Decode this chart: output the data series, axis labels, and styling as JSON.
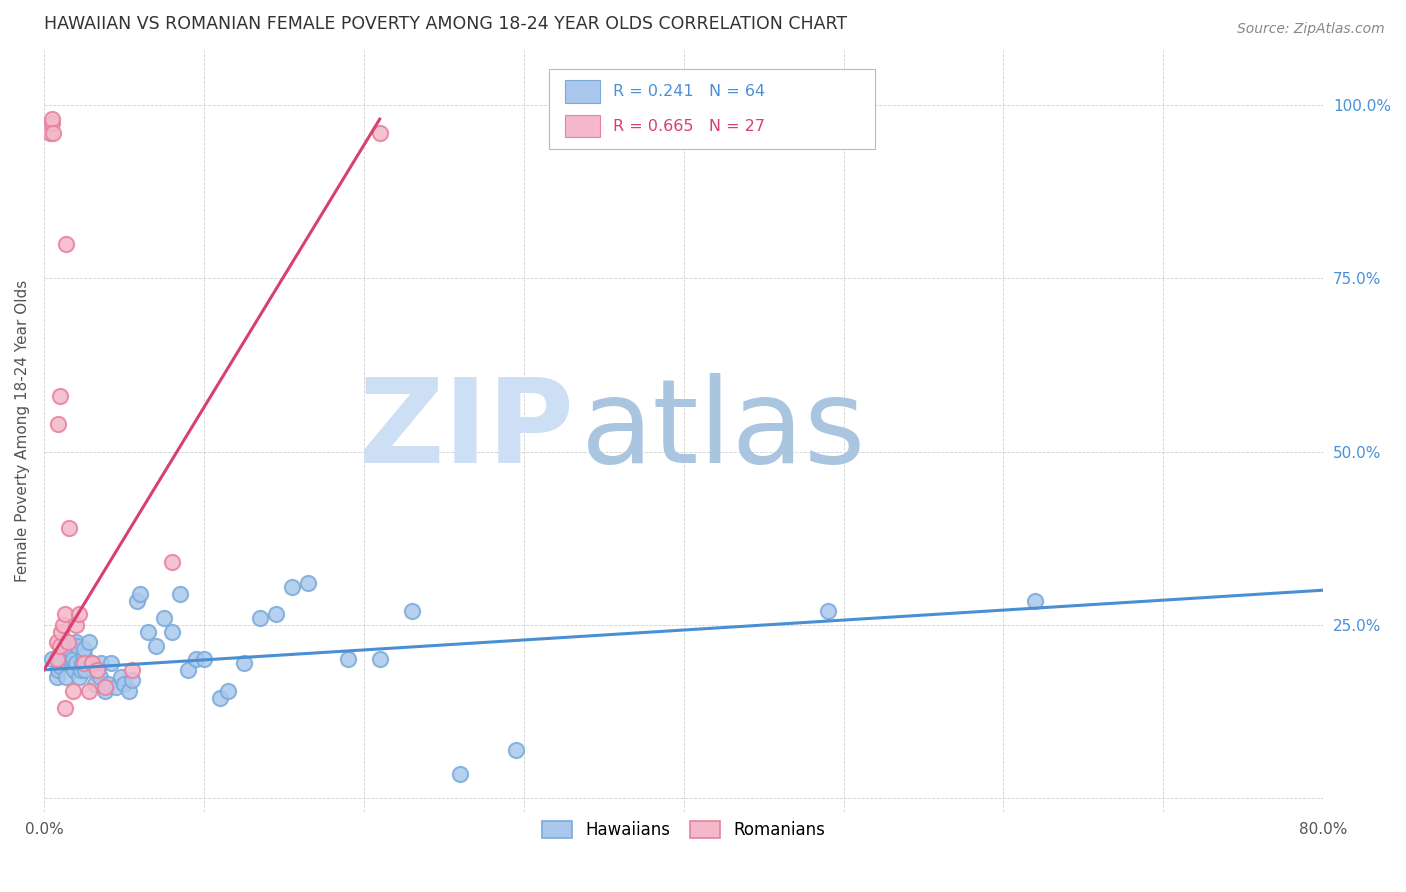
{
  "title": "HAWAIIAN VS ROMANIAN FEMALE POVERTY AMONG 18-24 YEAR OLDS CORRELATION CHART",
  "source": "Source: ZipAtlas.com",
  "ylabel": "Female Poverty Among 18-24 Year Olds",
  "xlim": [
    0.0,
    0.8
  ],
  "ylim": [
    -0.02,
    1.08
  ],
  "hawaiian_color": "#aac8ee",
  "romanian_color": "#f4b8ca",
  "hawaiian_edge": "#7aaad8",
  "romanian_edge": "#e8809e",
  "trendline_hawaiian_color": "#4a8fd4",
  "trendline_romanian_color": "#d84070",
  "watermark_zi_color": "#ccddf0",
  "watermark_atlas_color": "#aac5e8",
  "watermark_text_zi": "ZIP",
  "watermark_text_atlas": "atlas",
  "legend_r_hawaiian": "R = 0.241",
  "legend_n_hawaiian": "N = 64",
  "legend_r_romanian": "R = 0.665",
  "legend_n_romanian": "N = 27",
  "hawaiian_x": [
    0.005,
    0.008,
    0.009,
    0.01,
    0.01,
    0.011,
    0.012,
    0.013,
    0.014,
    0.015,
    0.015,
    0.016,
    0.016,
    0.017,
    0.018,
    0.018,
    0.019,
    0.02,
    0.02,
    0.021,
    0.022,
    0.023,
    0.024,
    0.025,
    0.025,
    0.026,
    0.028,
    0.03,
    0.032,
    0.033,
    0.035,
    0.036,
    0.038,
    0.04,
    0.042,
    0.045,
    0.048,
    0.05,
    0.053,
    0.055,
    0.058,
    0.06,
    0.065,
    0.07,
    0.075,
    0.08,
    0.085,
    0.09,
    0.095,
    0.1,
    0.11,
    0.115,
    0.125,
    0.135,
    0.145,
    0.155,
    0.165,
    0.19,
    0.21,
    0.23,
    0.26,
    0.295,
    0.49,
    0.62
  ],
  "hawaiian_y": [
    0.2,
    0.175,
    0.185,
    0.195,
    0.19,
    0.2,
    0.21,
    0.22,
    0.175,
    0.195,
    0.21,
    0.2,
    0.215,
    0.195,
    0.19,
    0.2,
    0.185,
    0.195,
    0.225,
    0.22,
    0.175,
    0.185,
    0.195,
    0.205,
    0.215,
    0.185,
    0.225,
    0.195,
    0.165,
    0.185,
    0.175,
    0.195,
    0.155,
    0.165,
    0.195,
    0.16,
    0.175,
    0.165,
    0.155,
    0.17,
    0.285,
    0.295,
    0.24,
    0.22,
    0.26,
    0.24,
    0.295,
    0.185,
    0.2,
    0.2,
    0.145,
    0.155,
    0.195,
    0.26,
    0.265,
    0.305,
    0.31,
    0.2,
    0.2,
    0.27,
    0.035,
    0.07,
    0.27,
    0.285
  ],
  "romanian_x": [
    0.004,
    0.005,
    0.005,
    0.006,
    0.008,
    0.008,
    0.009,
    0.01,
    0.01,
    0.011,
    0.012,
    0.013,
    0.013,
    0.014,
    0.015,
    0.016,
    0.018,
    0.02,
    0.022,
    0.025,
    0.028,
    0.03,
    0.033,
    0.038,
    0.055,
    0.08,
    0.21
  ],
  "romanian_y": [
    0.96,
    0.975,
    0.98,
    0.96,
    0.2,
    0.225,
    0.54,
    0.58,
    0.22,
    0.24,
    0.25,
    0.265,
    0.13,
    0.8,
    0.225,
    0.39,
    0.155,
    0.25,
    0.265,
    0.195,
    0.155,
    0.195,
    0.185,
    0.16,
    0.185,
    0.34,
    0.96
  ],
  "hawaiian_trendline_x": [
    0.0,
    0.8
  ],
  "hawaiian_trendline_y": [
    0.185,
    0.3
  ],
  "romanian_trendline_x": [
    0.0,
    0.21
  ],
  "romanian_trendline_y": [
    0.185,
    0.98
  ]
}
